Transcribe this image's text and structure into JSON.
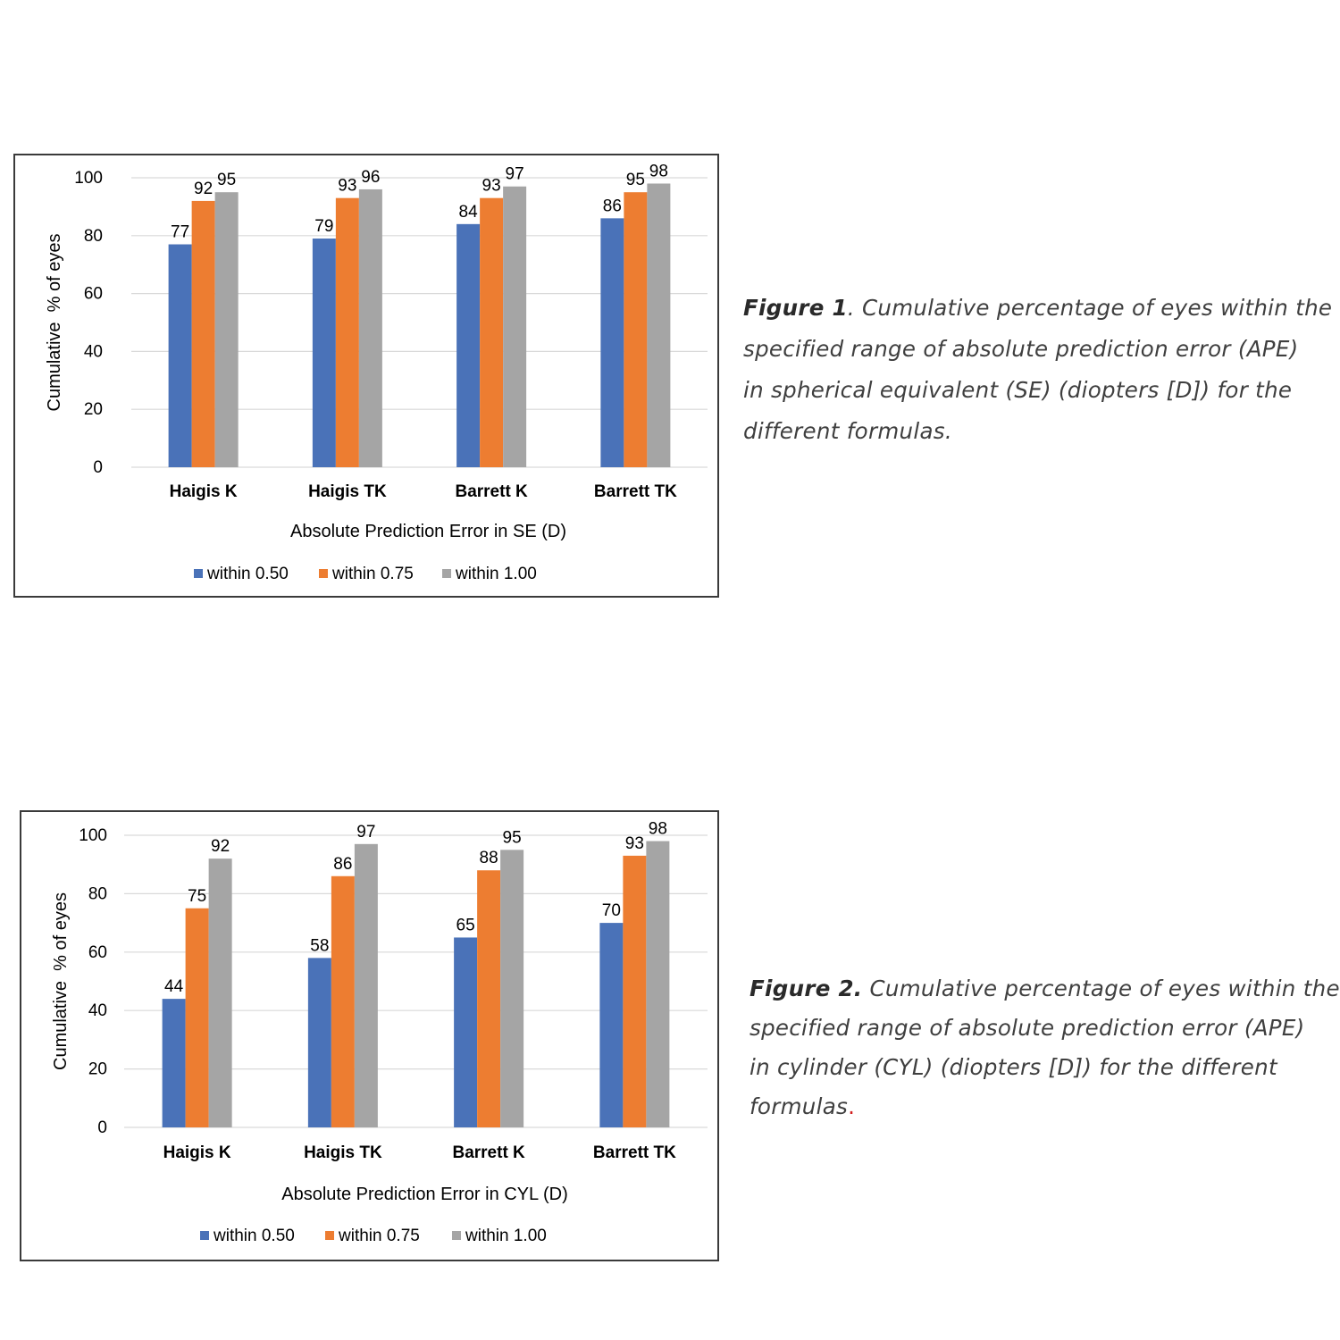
{
  "colors": {
    "within_050": "#4a72b8",
    "within_075": "#ed7d31",
    "within_100": "#a5a5a5",
    "grid": "#d9d9d9",
    "text": "#000000"
  },
  "figures": [
    {
      "caption": {
        "lead": "Figure 1",
        "lines": [
          ". Cumulative percentage of eyes within the",
          "specified range of absolute prediction error (APE)",
          "in spherical equivalent (SE) (diopters [D]) for the",
          "different formulas."
        ]
      }
    },
    {
      "caption": {
        "lead": "Figure 2.",
        "lines": [
          " Cumulative percentage of eyes within the",
          "specified range of absolute prediction error (APE)",
          "in cylinder (CYL) (diopters [D]) for the different",
          "formulas"
        ],
        "trailing": "."
      }
    }
  ],
  "chart_data": [
    {
      "type": "bar",
      "title": "",
      "xlabel": "Absolute Prediction Error in SE (D)",
      "ylabel": "Cumulative  % of eyes",
      "ylim": [
        0,
        100
      ],
      "yticks": [
        0,
        20,
        40,
        60,
        80,
        100
      ],
      "grid": true,
      "legend_position": "bottom",
      "categories": [
        "Haigis K",
        "Haigis TK",
        "Barrett K",
        "Barrett TK"
      ],
      "series": [
        {
          "name": "within 0.50",
          "values": [
            77,
            79,
            84,
            86
          ]
        },
        {
          "name": "within 0.75",
          "values": [
            92,
            93,
            93,
            95
          ]
        },
        {
          "name": "within 1.00",
          "values": [
            95,
            96,
            97,
            98
          ]
        }
      ]
    },
    {
      "type": "bar",
      "title": "",
      "xlabel": "Absolute Prediction Error in CYL (D)",
      "ylabel": "Cumulative  % of eyes",
      "ylim": [
        0,
        100
      ],
      "yticks": [
        0,
        20,
        40,
        60,
        80,
        100
      ],
      "grid": true,
      "legend_position": "bottom",
      "categories": [
        "Haigis K",
        "Haigis TK",
        "Barrett K",
        "Barrett TK"
      ],
      "series": [
        {
          "name": "within 0.50",
          "values": [
            44,
            58,
            65,
            70
          ]
        },
        {
          "name": "within 0.75",
          "values": [
            75,
            86,
            88,
            93
          ]
        },
        {
          "name": "within 1.00",
          "values": [
            92,
            97,
            95,
            98
          ]
        }
      ]
    }
  ]
}
